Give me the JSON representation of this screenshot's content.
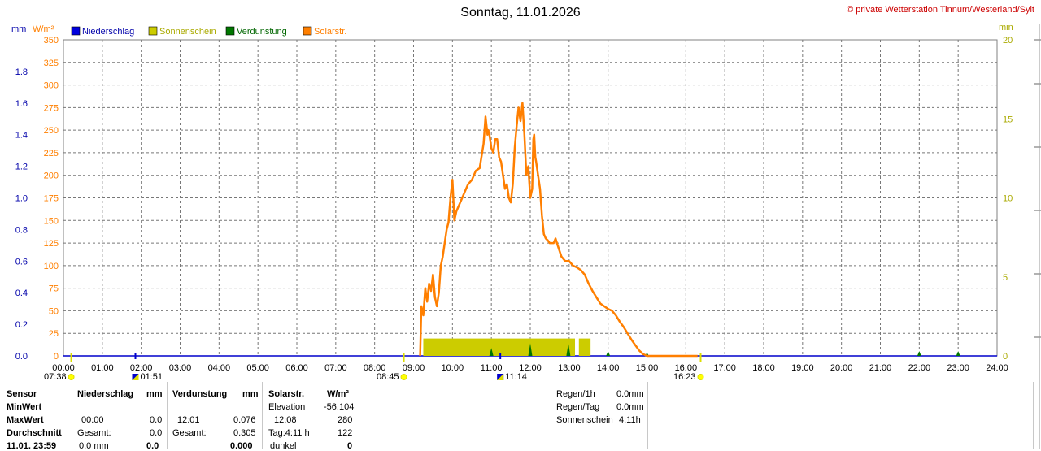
{
  "header": {
    "title": "Sonntag, 11.01.2026",
    "copyright": "© private Wetterstation Tinnum/Westerland/Sylt",
    "unit_mm": "mm",
    "unit_wm2": "W/m²",
    "unit_min": "min"
  },
  "legend": [
    {
      "label": "Niederschlag",
      "color": "#0000dd"
    },
    {
      "label": "Sonnenschein",
      "color": "#cccc00"
    },
    {
      "label": "Verdunstung",
      "color": "#007700"
    },
    {
      "label": "Solarstr.",
      "color": "#ff7f00"
    }
  ],
  "chart_data": {
    "type": "line",
    "title": "Sonntag, 11.01.2026",
    "x_ticks": [
      "00:00",
      "01:00",
      "02:00",
      "03:00",
      "04:00",
      "05:00",
      "06:00",
      "07:00",
      "08:00",
      "09:00",
      "10:00",
      "11:00",
      "12:00",
      "13:00",
      "14:00",
      "15:00",
      "16:00",
      "17:00",
      "18:00",
      "19:00",
      "20:00",
      "21:00",
      "22:00",
      "23:00",
      "24:00"
    ],
    "y_left_mm_ticks": [
      "0.0",
      "0.2",
      "0.4",
      "0.6",
      "0.8",
      "1.0",
      "1.2",
      "1.4",
      "1.6",
      "1.8"
    ],
    "y_left_wm2_ticks": [
      "0",
      "25",
      "50",
      "75",
      "100",
      "125",
      "150",
      "175",
      "200",
      "225",
      "250",
      "275",
      "300",
      "325",
      "350"
    ],
    "y_right_min_ticks": [
      "0",
      "5",
      "10",
      "15",
      "20"
    ],
    "ylim_wm2": [
      0,
      350
    ],
    "ylim_mm": [
      0,
      2.0
    ],
    "ylim_min": [
      0,
      20
    ],
    "xlim_hours": [
      0,
      24
    ],
    "grid": true,
    "series": [
      {
        "name": "Solarstr.",
        "color": "#ff7f00",
        "x": [
          9.17,
          9.2,
          9.25,
          9.3,
          9.35,
          9.4,
          9.45,
          9.5,
          9.55,
          9.6,
          9.65,
          9.7,
          9.75,
          9.8,
          9.85,
          9.9,
          9.95,
          10.0,
          10.05,
          10.1,
          10.15,
          10.2,
          10.25,
          10.3,
          10.4,
          10.5,
          10.6,
          10.7,
          10.8,
          10.85,
          10.9,
          10.92,
          10.95,
          11.0,
          11.05,
          11.1,
          11.15,
          11.2,
          11.25,
          11.3,
          11.35,
          11.4,
          11.45,
          11.5,
          11.55,
          11.6,
          11.65,
          11.7,
          11.75,
          11.8,
          11.85,
          11.9,
          11.95,
          12.0,
          12.05,
          12.08,
          12.1,
          12.13,
          12.15,
          12.2,
          12.25,
          12.3,
          12.35,
          12.4,
          12.45,
          12.5,
          12.55,
          12.6,
          12.65,
          12.7,
          12.8,
          12.9,
          13.0,
          13.1,
          13.2,
          13.3,
          13.4,
          13.5,
          13.6,
          13.7,
          13.8,
          13.9,
          14.0,
          14.1,
          14.2,
          14.3,
          14.4,
          14.5,
          14.6,
          14.7,
          14.8,
          14.9,
          15.0,
          15.1,
          15.2,
          15.3,
          15.4,
          15.5,
          15.6,
          15.7,
          15.8,
          15.9,
          16.0,
          16.1,
          16.2,
          16.3
        ],
        "y": [
          0,
          55,
          45,
          75,
          60,
          80,
          72,
          90,
          65,
          55,
          70,
          100,
          110,
          125,
          140,
          148,
          175,
          195,
          150,
          160,
          165,
          170,
          175,
          180,
          190,
          195,
          205,
          208,
          235,
          265,
          245,
          250,
          245,
          230,
          225,
          240,
          240,
          220,
          215,
          200,
          185,
          190,
          175,
          170,
          190,
          230,
          255,
          275,
          260,
          280,
          245,
          200,
          210,
          175,
          185,
          240,
          245,
          220,
          215,
          200,
          185,
          155,
          135,
          130,
          128,
          125,
          125,
          125,
          130,
          123,
          110,
          105,
          105,
          100,
          98,
          95,
          90,
          80,
          72,
          65,
          58,
          55,
          52,
          50,
          45,
          38,
          32,
          25,
          18,
          12,
          6,
          2,
          0,
          0,
          0,
          0,
          0,
          0,
          0,
          0,
          0,
          0,
          0,
          0,
          0,
          0
        ]
      },
      {
        "name": "Sonnenschein",
        "color": "#cccc00",
        "bars": [
          {
            "from": 9.25,
            "to": 13.15,
            "value_min": 1.1
          },
          {
            "from": 13.25,
            "to": 13.55,
            "value_min": 1.1
          }
        ]
      },
      {
        "name": "Verdunstung",
        "color": "#007700",
        "spikes": [
          {
            "x": 11.0,
            "value_mm": 0.05
          },
          {
            "x": 12.0,
            "value_mm": 0.08
          },
          {
            "x": 12.98,
            "value_mm": 0.08
          },
          {
            "x": 14.0,
            "value_mm": 0.03
          },
          {
            "x": 15.0,
            "value_mm": 0.02
          },
          {
            "x": 22.0,
            "value_mm": 0.03
          },
          {
            "x": 23.0,
            "value_mm": 0.03
          }
        ]
      }
    ],
    "markers": [
      {
        "label": "07:38",
        "x": 0.2,
        "kind": "sun"
      },
      {
        "label": "01:51",
        "x": 1.85,
        "kind": "moon"
      },
      {
        "label": "08:45",
        "x": 8.75,
        "kind": "sun"
      },
      {
        "label": "11:14",
        "x": 11.23,
        "kind": "moon"
      },
      {
        "label": "16:23",
        "x": 16.38,
        "kind": "sun"
      }
    ]
  },
  "table": {
    "col1": {
      "header": "Sensor",
      "rows": [
        "MinWert",
        "MaxWert",
        "Durchschnitt",
        "11.01. 23:59"
      ]
    },
    "niederschlag": {
      "header": "Niederschlag",
      "unit": "mm",
      "max_time": "00:00",
      "max_val": "0.0",
      "avg_label": "Gesamt:",
      "avg_val": "0.0",
      "last_val": "0.0 mm",
      "last_bold": "0.0"
    },
    "verdunstung": {
      "header": "Verdunstung",
      "unit": "mm",
      "max_time": "12:01",
      "max_val": "0.076",
      "avg_label": "Gesamt:",
      "avg_val": "0.305",
      "last_bold": "0.000"
    },
    "solar": {
      "header": "Solarstr.",
      "unit": "W/m²",
      "min_label": "Elevation",
      "min_val": "-56.104",
      "max_time": "12:08",
      "max_val": "280",
      "avg_label": "Tag:4:11 h",
      "avg_val": "122",
      "last_label": "dunkel",
      "last_bold": "0"
    },
    "summary": [
      {
        "label": "Regen/1h",
        "value": "0.0mm"
      },
      {
        "label": "Regen/Tag",
        "value": "0.0mm"
      },
      {
        "label": "Sonnenschein",
        "value": "4:11h"
      }
    ]
  }
}
